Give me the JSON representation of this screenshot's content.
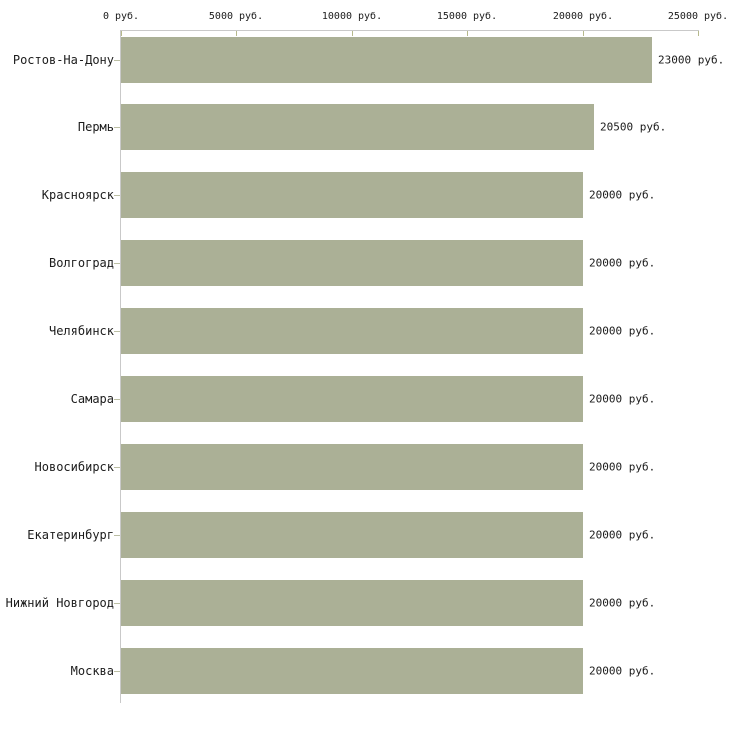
{
  "chart_data": {
    "type": "bar",
    "orientation": "horizontal",
    "title": "",
    "xlabel": "",
    "ylabel": "",
    "unit": "руб.",
    "categories": [
      "Ростов-На-Дону",
      "Пермь",
      "Красноярск",
      "Волгоград",
      "Челябинск",
      "Самара",
      "Новосибирск",
      "Екатеринбург",
      "Нижний Новгород",
      "Москва"
    ],
    "values": [
      23000,
      20500,
      20000,
      20000,
      20000,
      20000,
      20000,
      20000,
      20000,
      20000
    ],
    "value_labels": [
      "23000 руб.",
      "20500 руб.",
      "20000 руб.",
      "20000 руб.",
      "20000 руб.",
      "20000 руб.",
      "20000 руб.",
      "20000 руб.",
      "20000 руб.",
      "20000 руб."
    ],
    "xlim": [
      0,
      25000
    ],
    "x_ticks": [
      0,
      5000,
      10000,
      15000,
      20000,
      25000
    ],
    "x_tick_labels": [
      "0 руб.",
      "5000 руб.",
      "10000 руб.",
      "15000 руб.",
      "20000 руб.",
      "25000 руб."
    ],
    "grid": false,
    "legend": null,
    "colors": {
      "bar": "#abb096",
      "axis_line": "#c9c9c9",
      "x_tick": "#b6b98c",
      "y_tick": "#bcbfa4",
      "text": "#1c1c1c",
      "background": "#ffffff"
    }
  }
}
